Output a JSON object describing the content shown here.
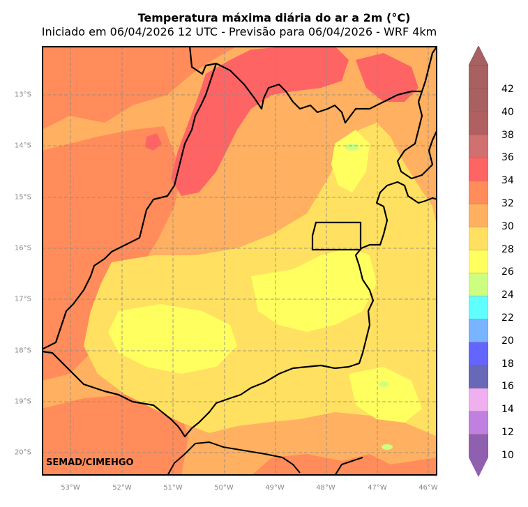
{
  "title": "Temperatura máxima diária do ar a 2m (°C)",
  "subtitle": "Iniciado em 06/04/2026 12 UTC - Previsão para 06/04/2026 - WRF 4km",
  "credit": "SEMAD/CIMEHGO",
  "lat_labels": [
    "13°S",
    "14°S",
    "15°S",
    "16°S",
    "17°S",
    "18°S",
    "19°S",
    "20°S"
  ],
  "lon_labels": [
    "53°W",
    "52°W",
    "51°W",
    "50°W",
    "49°W",
    "48°W",
    "47°W",
    "46°W"
  ],
  "map_extent": {
    "lon_min": -53.55,
    "lon_max": -45.9,
    "lat_max": -12.1,
    "lat_min": -20.45
  },
  "colorbar": {
    "ticks": [
      "42",
      "40",
      "38",
      "36",
      "34",
      "32",
      "30",
      "28",
      "26",
      "24",
      "22",
      "20",
      "18",
      "16",
      "14",
      "12",
      "10"
    ],
    "colors": {
      "under": "#9060b0",
      "over": "#a86060",
      "bands": [
        "#9060b0",
        "#c080e0",
        "#f0b0f0",
        "#6868b8",
        "#6464ff",
        "#78b4ff",
        "#60ffff",
        "#ccff80",
        "#ffff60",
        "#ffe060",
        "#ffb060",
        "#ff8c5a",
        "#ff6464",
        "#d07070",
        "#b06060",
        "#a86060",
        "#a86060"
      ]
    }
  },
  "temperature_colors": {
    "t26": "#ffff60",
    "t28": "#ffe060",
    "t30": "#ffb060",
    "t32": "#ff8c5a",
    "t34": "#ff6464",
    "t24": "#ccff80"
  },
  "grid": true,
  "boundary": "Goiás / Distrito Federal"
}
